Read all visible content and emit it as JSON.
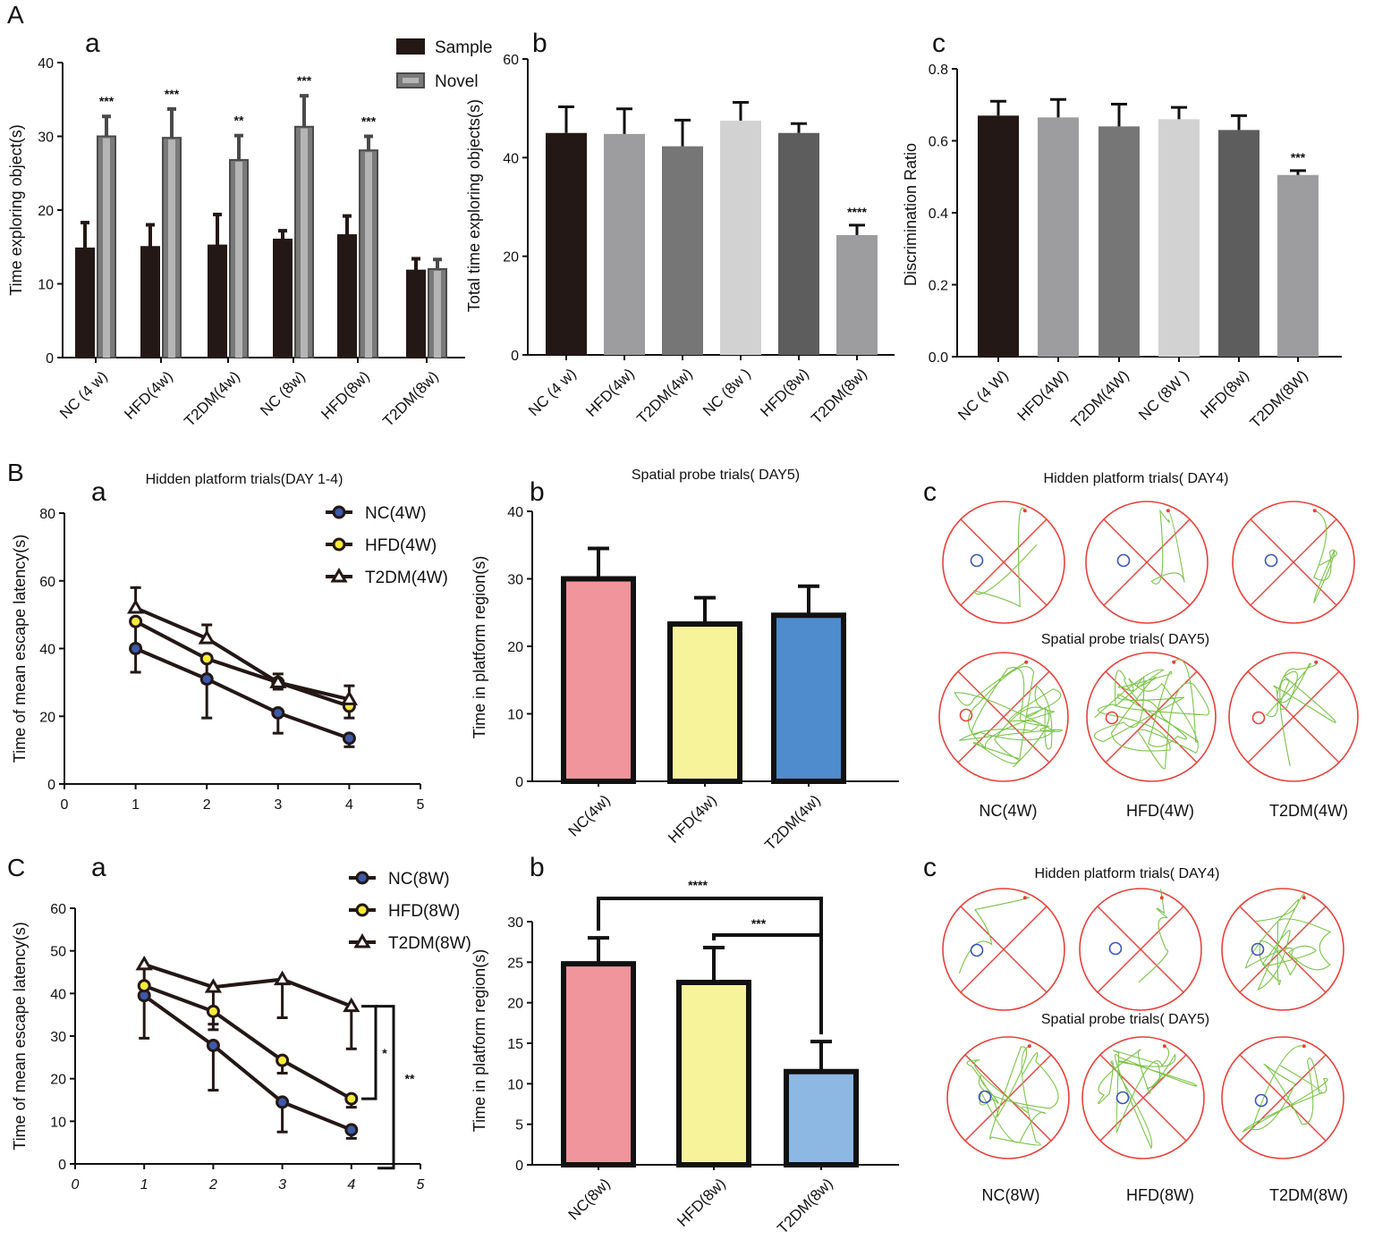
{
  "figure": {
    "panel_labels": [
      "A",
      "B",
      "C"
    ],
    "sub_labels": [
      "a",
      "b",
      "c"
    ]
  },
  "chart_data": [
    {
      "id": "A_a",
      "type": "bar",
      "title": "",
      "xlabel": "",
      "ylabel": "Time exploring object(s)",
      "ylim": [
        0,
        40
      ],
      "yticks": [
        "0",
        "10",
        "20",
        "30",
        "40"
      ],
      "categories": [
        "NC (4 w)",
        "HFD(4w)",
        "T2DM(4w)",
        "NC (8w)",
        "HFD(8w)",
        "T2DM(8w)"
      ],
      "series": [
        {
          "name": "Sample",
          "color": "#231815",
          "values": [
            14.8,
            15.0,
            15.2,
            16.0,
            16.6,
            11.8
          ],
          "errors": [
            3.5,
            3.0,
            4.2,
            1.2,
            2.6,
            1.6
          ]
        },
        {
          "name": "Novel",
          "color": "#8c8c8c",
          "values": [
            30.0,
            29.8,
            26.8,
            31.3,
            28.1,
            12.0
          ],
          "errors": [
            2.7,
            3.9,
            3.3,
            4.2,
            1.9,
            1.3
          ]
        }
      ],
      "significance": [
        "***",
        "***",
        "**",
        "***",
        "***",
        ""
      ]
    },
    {
      "id": "A_b",
      "type": "bar",
      "title": "",
      "xlabel": "",
      "ylabel": "Total time exploring objects(s)",
      "ylim": [
        0,
        60
      ],
      "yticks": [
        "0",
        "20",
        "40",
        "60"
      ],
      "categories": [
        "NC (4 w)",
        "HFD(4w)",
        "T2DM(4w)",
        "NC (8w  )",
        "HFD(8w)",
        "T2DM(8w)"
      ],
      "values": [
        45.0,
        44.8,
        42.3,
        47.5,
        45.0,
        24.3
      ],
      "errors": [
        5.3,
        5.1,
        5.3,
        3.7,
        1.9,
        2.0
      ],
      "colors": [
        "#231815",
        "#9d9d9f",
        "#767676",
        "#d2d2d2",
        "#5d5d5d",
        "#9d9d9f"
      ],
      "significance": [
        "",
        "",
        "",
        "",
        "",
        "****"
      ]
    },
    {
      "id": "A_c",
      "type": "bar",
      "title": "",
      "xlabel": "",
      "ylabel": "Discrimination  Ratio",
      "ylim": [
        0,
        0.8
      ],
      "yticks": [
        "0.0",
        "0.2",
        "0.4",
        "0.6",
        "0.8"
      ],
      "categories": [
        "NC (4 W)",
        "HFD(4W)",
        "T2DM(4W)",
        "NC (8W )",
        "HFD(8w)",
        "T2DM(8W)"
      ],
      "values": [
        0.67,
        0.665,
        0.64,
        0.66,
        0.63,
        0.505
      ],
      "errors": [
        0.04,
        0.05,
        0.062,
        0.033,
        0.04,
        0.012
      ],
      "colors": [
        "#231815",
        "#9d9d9f",
        "#767676",
        "#d2d2d2",
        "#5d5d5d",
        "#9d9d9f"
      ],
      "significance": [
        "",
        "",
        "",
        "",
        "",
        "***"
      ]
    },
    {
      "id": "B_a",
      "type": "line",
      "title": "Hidden  platform trials(DAY 1-4)",
      "xlabel": "",
      "ylabel": "Time of mean escape latency(s)",
      "xlim": [
        0,
        5
      ],
      "ylim": [
        0,
        80
      ],
      "xticks": [
        "0",
        "1",
        "2",
        "3",
        "4",
        "5"
      ],
      "yticks": [
        "0",
        "20",
        "40",
        "60",
        "80"
      ],
      "x": [
        1,
        2,
        3,
        4
      ],
      "series": [
        {
          "name": "NC(4W)",
          "marker": "circle",
          "fill": "#3d5aa8",
          "values": [
            40,
            31,
            21,
            13.5
          ],
          "errors": [
            7,
            11.5,
            6,
            2.5
          ]
        },
        {
          "name": "HFD(4W)",
          "marker": "circle",
          "fill": "#f6ea3c",
          "values": [
            48,
            37,
            30,
            23
          ],
          "errors": [
            7,
            7,
            2,
            3.5
          ]
        },
        {
          "name": "T2DM(4W)",
          "marker": "triangle",
          "fill": "#ffffff",
          "values": [
            52,
            43,
            30,
            25
          ],
          "errors": [
            6,
            4,
            2.5,
            4
          ]
        }
      ]
    },
    {
      "id": "B_b",
      "type": "bar",
      "title": "Spatial probe trials( DAY5)",
      "xlabel": "",
      "ylabel": "Time in platform region(s)",
      "ylim": [
        0,
        40
      ],
      "yticks": [
        "0",
        "10",
        "20",
        "30",
        "40"
      ],
      "categories": [
        "NC(4w)",
        "HFD(4w)",
        "T2DM(4w)"
      ],
      "values": [
        30,
        23.3,
        24.6
      ],
      "errors": [
        4.5,
        3.9,
        4.3
      ],
      "colors": [
        "#f0959b",
        "#f7f39b",
        "#4e8ccd"
      ]
    },
    {
      "id": "C_a",
      "type": "line",
      "title": "",
      "xlabel": "",
      "ylabel": "Time of mean escape latency(s)",
      "xlim": [
        0,
        5
      ],
      "ylim": [
        0,
        60
      ],
      "xticks": [
        "0",
        "1",
        "2",
        "3",
        "4",
        "5"
      ],
      "yticks": [
        "0",
        "10",
        "20",
        "30",
        "40",
        "50",
        "60"
      ],
      "x": [
        1,
        2,
        3,
        4
      ],
      "series": [
        {
          "name": "NC(8W)",
          "marker": "circle",
          "fill": "#3d5aa8",
          "values": [
            39.5,
            27.8,
            14.5,
            8
          ],
          "errors": [
            10,
            10.5,
            7,
            2
          ]
        },
        {
          "name": "HFD(8W)",
          "marker": "circle",
          "fill": "#f6ea3c",
          "values": [
            41.8,
            35.8,
            24.3,
            15.3
          ],
          "errors": [
            3,
            3,
            3,
            2
          ]
        },
        {
          "name": "T2DM(8W)",
          "marker": "triangle",
          "fill": "#ffffff",
          "values": [
            46.8,
            41.5,
            43.3,
            37
          ],
          "errors": [
            8,
            10,
            9,
            10
          ]
        }
      ],
      "significance": [
        "*",
        "**"
      ]
    },
    {
      "id": "C_b",
      "type": "bar",
      "title": "",
      "xlabel": "",
      "ylabel": "Time in platform region(s)",
      "ylim": [
        0,
        30
      ],
      "yticks": [
        "0",
        "5",
        "10",
        "15",
        "20",
        "25",
        "30"
      ],
      "categories": [
        "NC(8w)",
        "HFD(8w)",
        "T2DM(8w)"
      ],
      "values": [
        24.8,
        22.5,
        11.5
      ],
      "errors": [
        3.2,
        4.3,
        3.7
      ],
      "colors": [
        "#f0959b",
        "#f7f39b",
        "#8db8e3"
      ],
      "significance": [
        "****",
        "***"
      ]
    }
  ],
  "tracks": {
    "B_c": {
      "title_top": "Hidden platform trials( DAY4)",
      "title_bottom": "Spatial probe trials( DAY5)",
      "groups": [
        "NC(4W)",
        "HFD(4W)",
        "T2DM(4W)"
      ]
    },
    "C_c": {
      "title_top": "Hidden platform trials( DAY4)",
      "title_bottom": "Spatial probe trials( DAY5)",
      "groups": [
        "NC(8W)",
        "HFD(8W)",
        "T2DM(8W)"
      ]
    }
  },
  "colors": {
    "pool": "#e8403a",
    "path": "#7cc34a",
    "platform_day4": "#3a55b5",
    "platform_day5": "#e8403a"
  }
}
